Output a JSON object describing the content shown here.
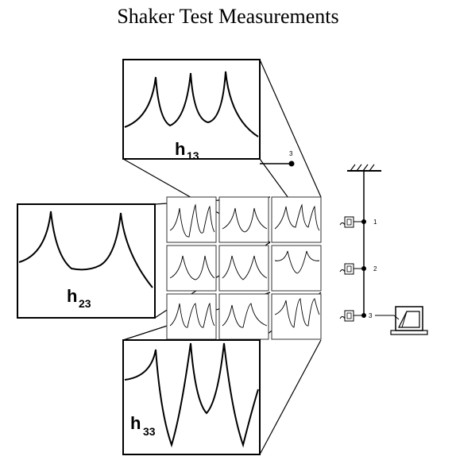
{
  "title": "Shaker Test Measurements",
  "zoom_panels": [
    {
      "id": "h13",
      "main": "h",
      "sub": "13"
    },
    {
      "id": "h23",
      "main": "h",
      "sub": "23"
    },
    {
      "id": "h33",
      "main": "h",
      "sub": "33"
    }
  ],
  "point_labels": {
    "p1": "1",
    "p2": "2",
    "p3": "3",
    "callout": "3"
  }
}
